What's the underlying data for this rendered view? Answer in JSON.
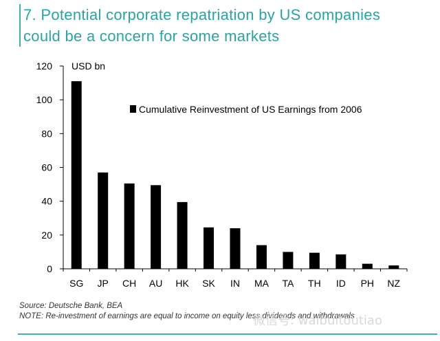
{
  "header": {
    "title_line1": "7. Potential corporate repatriation by US companies",
    "title_line2": "could be a concern for some markets"
  },
  "chart_data": {
    "type": "bar",
    "title": "",
    "ylabel": "USD bn",
    "xlabel": "",
    "ylim": [
      0,
      120
    ],
    "yticks": [
      0,
      20,
      40,
      60,
      80,
      100,
      120
    ],
    "legend_position": "top-right",
    "categories": [
      "SG",
      "JP",
      "CH",
      "AU",
      "HK",
      "SK",
      "IN",
      "MA",
      "TA",
      "TH",
      "ID",
      "PH",
      "NZ"
    ],
    "series": [
      {
        "name": "Cumulative Reinvestment of US Earnings from 2006",
        "values": [
          111,
          57,
          50.5,
          49.5,
          39.5,
          24.5,
          24,
          14,
          10,
          9.5,
          8.5,
          3,
          2
        ],
        "color": "#000000"
      }
    ]
  },
  "footer": {
    "source": "Source: Deutsche Bank, BEA",
    "note": "NOTE: Re-investment of earnings are equal to income on equity less dividends and withdrawals"
  },
  "watermark": "微信号: waibuitoutiao",
  "colors": {
    "accent": "#2aa3a6",
    "bar": "#000000"
  }
}
